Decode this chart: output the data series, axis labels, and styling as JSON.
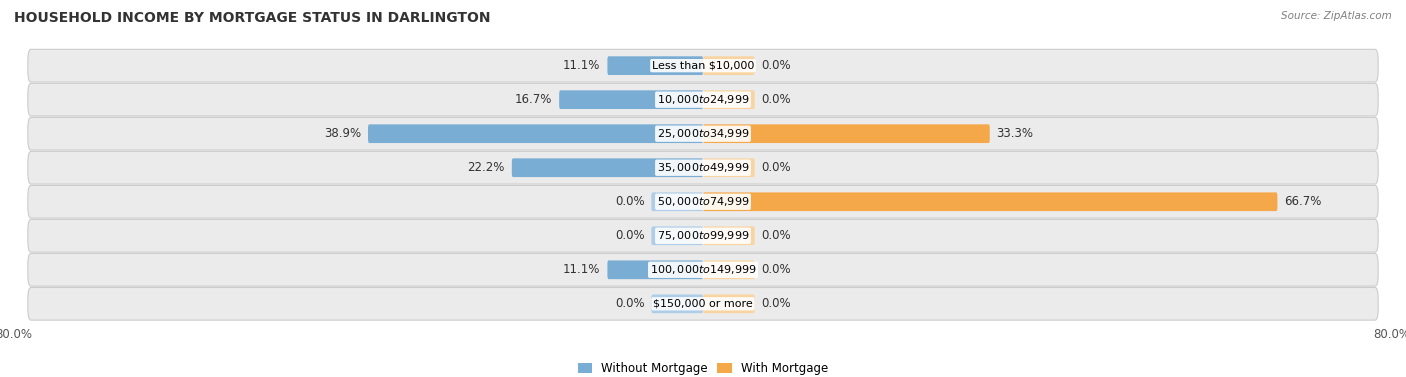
{
  "title": "HOUSEHOLD INCOME BY MORTGAGE STATUS IN DARLINGTON",
  "source": "Source: ZipAtlas.com",
  "categories": [
    "Less than $10,000",
    "$10,000 to $24,999",
    "$25,000 to $34,999",
    "$35,000 to $49,999",
    "$50,000 to $74,999",
    "$75,000 to $99,999",
    "$100,000 to $149,999",
    "$150,000 or more"
  ],
  "without_mortgage": [
    11.1,
    16.7,
    38.9,
    22.2,
    0.0,
    0.0,
    11.1,
    0.0
  ],
  "with_mortgage": [
    0.0,
    0.0,
    33.3,
    0.0,
    66.7,
    0.0,
    0.0,
    0.0
  ],
  "color_without": "#7aadd4",
  "color_with": "#f5a84a",
  "color_without_zero": "#aecde8",
  "color_with_zero": "#f9d4a0",
  "xlim": 80.0,
  "stub_size": 6.0,
  "bar_height": 0.55,
  "row_bg_color": "#ebebeb",
  "legend_without": "Without Mortgage",
  "legend_with": "With Mortgage",
  "title_fontsize": 10,
  "source_fontsize": 7.5,
  "label_fontsize": 8.5,
  "category_fontsize": 8,
  "axis_label_fontsize": 8.5,
  "background_color": "#ffffff"
}
